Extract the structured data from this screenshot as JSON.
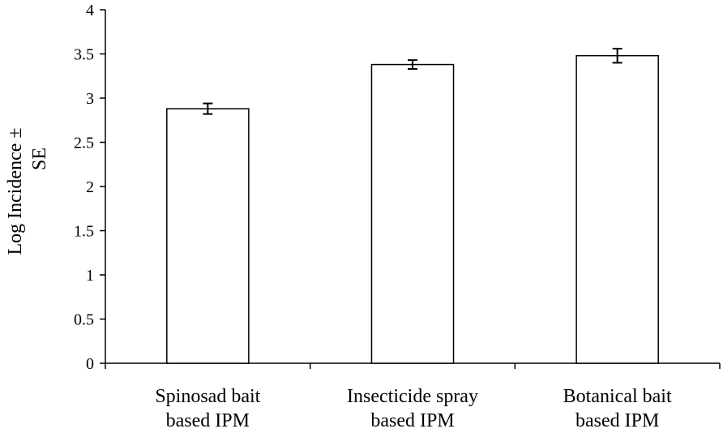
{
  "chart_data": {
    "type": "bar",
    "categories": [
      [
        "Spinosad bait",
        "based IPM"
      ],
      [
        "Insecticide spray",
        "based IPM"
      ],
      [
        "Botanical bait",
        "based IPM"
      ]
    ],
    "values": [
      2.88,
      3.38,
      3.48
    ],
    "errors": [
      0.06,
      0.05,
      0.08
    ],
    "ylabel": "Log Incidence ± SE",
    "ylabel_lines": [
      "Log Incidence ±",
      "SE"
    ],
    "ylim": [
      0,
      4
    ],
    "yticks": [
      "0",
      "0.5",
      "1",
      "1.5",
      "2",
      "2.5",
      "3",
      "3.5",
      "4"
    ],
    "ytick_values": [
      0,
      0.5,
      1,
      1.5,
      2,
      2.5,
      3,
      3.5,
      4
    ],
    "grid": false,
    "legend": "none",
    "colors": {
      "bar_fill": "#ffffff",
      "bar_stroke": "#000000",
      "axis": "#000000"
    }
  }
}
